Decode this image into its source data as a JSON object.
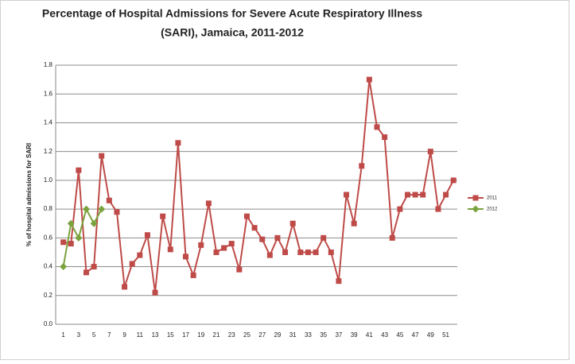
{
  "chart_data": {
    "type": "line",
    "title": [
      "Percentage of Hospital Admissions for Severe Acute Respiratory Illness",
      "(SARI), Jamaica, 2011-2012"
    ],
    "ylabel": "% of hospital admissions for SARI",
    "x": [
      1,
      2,
      3,
      4,
      5,
      6,
      7,
      8,
      9,
      10,
      11,
      12,
      13,
      14,
      15,
      16,
      17,
      18,
      19,
      20,
      21,
      22,
      23,
      24,
      25,
      26,
      27,
      28,
      29,
      30,
      31,
      32,
      33,
      34,
      35,
      36,
      37,
      38,
      39,
      40,
      41,
      42,
      43,
      44,
      45,
      46,
      47,
      48,
      49,
      50,
      51,
      52
    ],
    "xlim": [
      0,
      52.5
    ],
    "xticks": [
      1,
      3,
      5,
      7,
      9,
      11,
      13,
      15,
      17,
      19,
      21,
      23,
      25,
      27,
      29,
      31,
      33,
      35,
      37,
      39,
      41,
      43,
      45,
      47,
      49,
      51
    ],
    "ylim": [
      0,
      1.8
    ],
    "yticks": [
      {
        "value": 0,
        "label": "0.0"
      },
      0.2,
      0.4,
      0.6,
      0.8,
      {
        "value": 1,
        "label": "1.0"
      },
      1.2,
      1.4,
      1.6,
      1.8
    ],
    "grid": true,
    "legend": "right",
    "series": [
      {
        "name": "2011",
        "color": "#be4b48",
        "marker": "square",
        "values": [
          0.57,
          0.56,
          1.07,
          0.36,
          0.4,
          1.17,
          0.86,
          0.78,
          0.26,
          0.42,
          0.48,
          0.62,
          0.22,
          0.75,
          0.52,
          1.26,
          0.47,
          0.34,
          0.55,
          0.84,
          0.5,
          0.53,
          0.56,
          0.38,
          0.75,
          0.67,
          0.59,
          0.48,
          0.6,
          0.5,
          0.7,
          0.5,
          0.5,
          0.5,
          0.6,
          0.5,
          0.3,
          0.9,
          0.7,
          1.1,
          1.7,
          1.37,
          1.3,
          0.6,
          0.8,
          0.9,
          0.9,
          0.9,
          1.2,
          0.8,
          0.9,
          1.0
        ]
      },
      {
        "name": "2012",
        "color": "#7aa23d",
        "marker": "diamond",
        "values": [
          0.4,
          0.7,
          0.6,
          0.8,
          0.7,
          0.8,
          null,
          null,
          null,
          null,
          null,
          null,
          null,
          null,
          null,
          null,
          null,
          null,
          null,
          null,
          null,
          null,
          null,
          null,
          null,
          null,
          null,
          null,
          null,
          null,
          null,
          null,
          null,
          null,
          null,
          null,
          null,
          null,
          null,
          null,
          null,
          null,
          null,
          null,
          null,
          null,
          null,
          null,
          null,
          null,
          null,
          null
        ]
      }
    ]
  }
}
